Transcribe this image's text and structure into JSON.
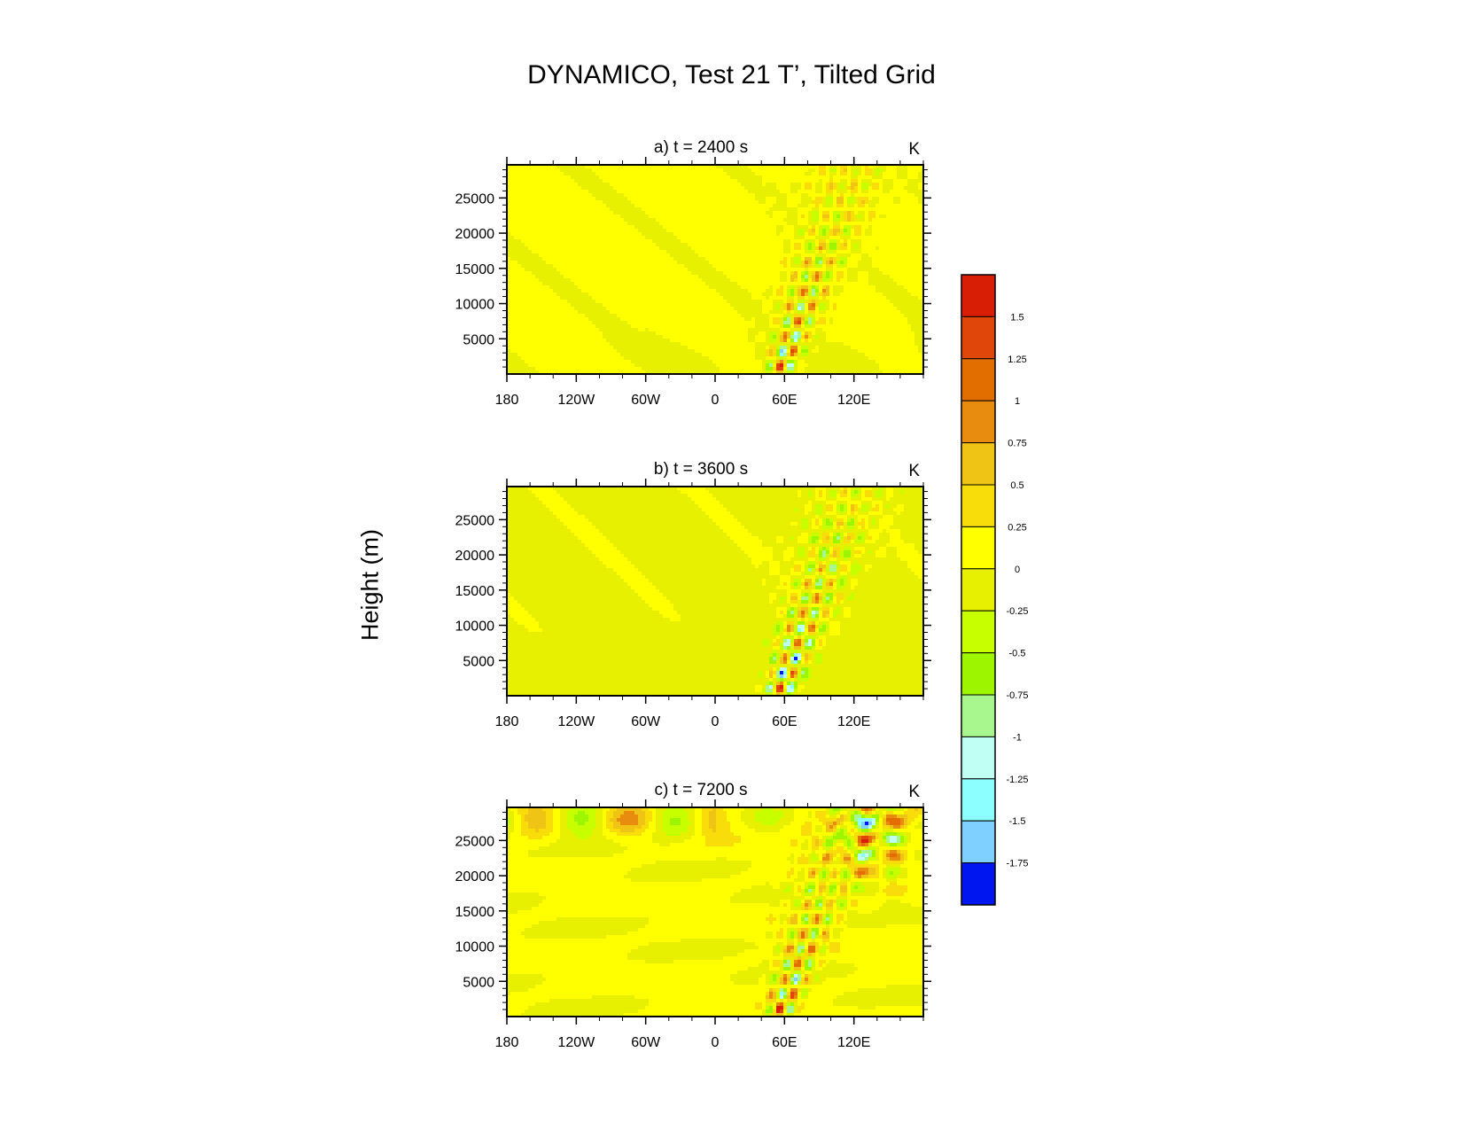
{
  "page": {
    "title": "DYNAMICO, Test 21 T’, Tilted Grid",
    "ylabel": "Height (m)"
  },
  "chart_data": [
    {
      "type": "heatmap",
      "title": "a) t = 2400 s",
      "units": "K",
      "ylabel": "Height (m)",
      "x_ticks": [
        "180",
        "120W",
        "60W",
        "0",
        "60E",
        "120E"
      ],
      "x_tick_values": [
        -180,
        -120,
        -60,
        0,
        60,
        120
      ],
      "xlim": [
        -180,
        180
      ],
      "y_ticks": [
        5000,
        10000,
        15000,
        20000,
        25000
      ],
      "ylim": [
        0,
        29700
      ],
      "wave_packet": {
        "center_lon_surface": 55,
        "amplitude_max": 1.75,
        "tilt": "eastward with height"
      }
    },
    {
      "type": "heatmap",
      "title": "b) t = 3600 s",
      "units": "K",
      "ylabel": "Height (m)",
      "x_ticks": [
        "180",
        "120W",
        "60W",
        "0",
        "60E",
        "120E"
      ],
      "x_tick_values": [
        -180,
        -120,
        -60,
        0,
        60,
        120
      ],
      "xlim": [
        -180,
        180
      ],
      "y_ticks": [
        5000,
        10000,
        15000,
        20000,
        25000
      ],
      "ylim": [
        0,
        29700
      ],
      "wave_packet": {
        "center_lon_surface": 55,
        "amplitude_max": 2.0,
        "tilt": "eastward with height"
      }
    },
    {
      "type": "heatmap",
      "title": "c) t = 7200 s",
      "units": "K",
      "ylabel": "Height (m)",
      "x_ticks": [
        "180",
        "120W",
        "60W",
        "0",
        "60E",
        "120E"
      ],
      "x_tick_values": [
        -180,
        -120,
        -60,
        0,
        60,
        120
      ],
      "xlim": [
        -180,
        180
      ],
      "y_ticks": [
        5000,
        10000,
        15000,
        20000,
        25000
      ],
      "ylim": [
        0,
        29700
      ],
      "wave_packet": {
        "center_lon_surface": 55,
        "amplitude_max": 1.75,
        "tilt": "eastward with height"
      }
    }
  ],
  "colorbar": {
    "labels": [
      "1.5",
      "1.25",
      "1",
      "0.75",
      "0.5",
      "0.25",
      "0",
      "-0.25",
      "-0.5",
      "-0.75",
      "-1",
      "-1.25",
      "-1.5",
      "-1.75"
    ],
    "colors": [
      "#d81e05",
      "#e0450a",
      "#e36e00",
      "#e88c10",
      "#f0c414",
      "#f8dd0a",
      "#ffff00",
      "#e6f000",
      "#c8ff00",
      "#9ef500",
      "#a8f78e",
      "#c0fff4",
      "#8cffff",
      "#80d0ff",
      "#0016f0"
    ]
  }
}
